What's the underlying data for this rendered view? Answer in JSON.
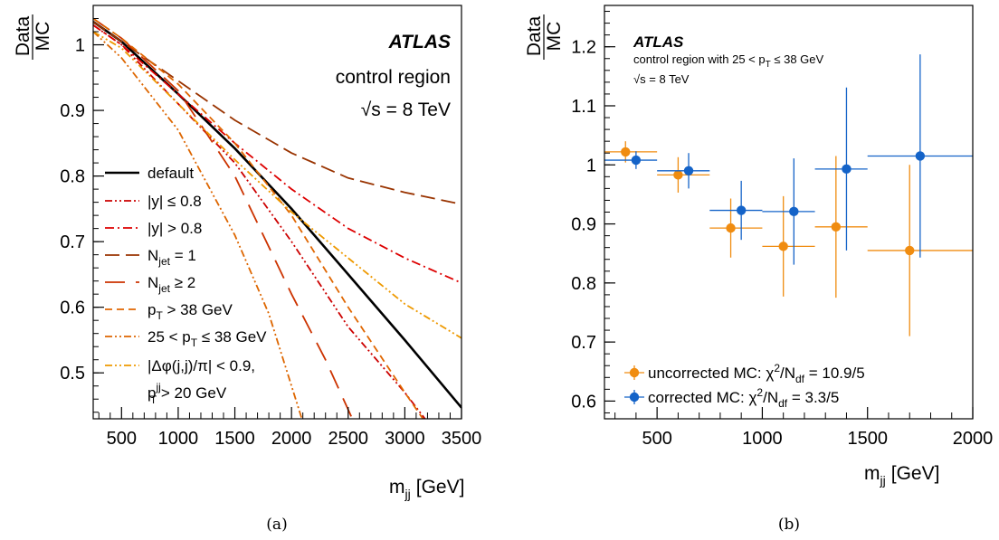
{
  "chart_data": [
    {
      "type": "line",
      "panel_caption": "(a)",
      "ylabel_num": "Data",
      "ylabel_den": "MC",
      "xlabel_main": "m",
      "xlabel_sub": "jj",
      "xlabel_unit": "[GeV]",
      "xlim": [
        250,
        3500
      ],
      "ylim": [
        0.43,
        1.06
      ],
      "xticks": [
        500,
        1000,
        1500,
        2000,
        2500,
        3000,
        3500
      ],
      "yticks": [
        0.5,
        0.6,
        0.7,
        0.8,
        0.9,
        1
      ],
      "annotations": {
        "experiment": "ATLAS",
        "region": "control region",
        "energy_prefix": "√s",
        "energy_value": " = 8 TeV"
      },
      "legend_placement": "bottom-left",
      "series": [
        {
          "name": "default",
          "color": "#000000",
          "dash": "solid",
          "x": [
            250,
            500,
            1000,
            1500,
            2000,
            2500,
            3000,
            3500
          ],
          "y": [
            1.035,
            1.005,
            0.925,
            0.842,
            0.75,
            0.65,
            0.55,
            0.447
          ]
        },
        {
          "name": "|y| ≤ 0.8",
          "color": "#cc0000",
          "dash": "dashdotdot",
          "x": [
            250,
            500,
            1000,
            1500,
            2000,
            2500,
            3000,
            3200
          ],
          "y": [
            1.03,
            1.0,
            0.91,
            0.82,
            0.7,
            0.57,
            0.47,
            0.425
          ]
        },
        {
          "name": "|y| > 0.8",
          "color": "#dd0000",
          "dash": "dashdot",
          "x": [
            250,
            500,
            1000,
            1500,
            2000,
            2500,
            3000,
            3500
          ],
          "y": [
            1.03,
            1.0,
            0.925,
            0.85,
            0.78,
            0.72,
            0.675,
            0.637
          ]
        },
        {
          "name": "N_jet = 1",
          "color": "#993300",
          "dash": "longdash",
          "x": [
            250,
            500,
            1000,
            1500,
            2000,
            2500,
            3000,
            3500
          ],
          "y": [
            1.035,
            1.005,
            0.945,
            0.885,
            0.835,
            0.797,
            0.775,
            0.757
          ]
        },
        {
          "name": "N_jet ≥ 2",
          "color": "#cc3300",
          "dash": "longdashgap",
          "x": [
            250,
            500,
            1000,
            1500,
            2000,
            2300,
            2550
          ],
          "y": [
            1.04,
            1.01,
            0.93,
            0.8,
            0.62,
            0.52,
            0.425
          ]
        },
        {
          "name": "p_T > 38 GeV",
          "color": "#e06600",
          "dash": "dash",
          "x": [
            250,
            500,
            1000,
            1500,
            2000,
            2500,
            3000,
            3200
          ],
          "y": [
            1.04,
            1.01,
            0.94,
            0.85,
            0.74,
            0.6,
            0.47,
            0.42
          ]
        },
        {
          "name": "25 < p_T ≤ 38 GeV",
          "color": "#dd6600",
          "dash": "dashdotdot",
          "x": [
            250,
            500,
            1000,
            1500,
            1800,
            2100
          ],
          "y": [
            1.02,
            0.98,
            0.87,
            0.71,
            0.59,
            0.425
          ]
        },
        {
          "name": "|Δφ(j,j)/π| < 0.9, p_T^jj > 20 GeV",
          "color": "#ee9900",
          "dash": "dashdotdot",
          "x": [
            250,
            500,
            1000,
            1500,
            2000,
            2500,
            3000,
            3500
          ],
          "y": [
            1.02,
            0.995,
            0.91,
            0.825,
            0.745,
            0.675,
            0.605,
            0.553
          ]
        }
      ],
      "legend_rows": [
        {
          "label": "default"
        },
        {
          "label": "|y| ≤ 0.8"
        },
        {
          "label": "|y| > 0.8"
        },
        {
          "label": "N",
          "sub": "jet",
          "tail": " = 1"
        },
        {
          "label": "N",
          "sub": "jet",
          "tail": " ≥ 2"
        },
        {
          "label": "p",
          "sub": "T",
          "tail": " > 38 GeV"
        },
        {
          "label": "25 < p",
          "sub": "T",
          "tail": " ≤ 38 GeV"
        },
        {
          "label": "|Δφ(j,j)/π| < 0.9,"
        },
        {
          "label": "p",
          "sub": "T",
          "sup": "jj",
          "tail": " > 20 GeV"
        }
      ]
    },
    {
      "type": "scatter",
      "panel_caption": "(b)",
      "ylabel_num": "Data",
      "ylabel_den": "MC",
      "xlabel_main": "m",
      "xlabel_sub": "jj",
      "xlabel_unit": "[GeV]",
      "xlim": [
        250,
        2000
      ],
      "ylim": [
        0.57,
        1.27
      ],
      "xticks": [
        500,
        1000,
        1500,
        2000
      ],
      "yticks": [
        0.6,
        0.7,
        0.8,
        0.9,
        1,
        1.1,
        1.2
      ],
      "annotations": {
        "experiment": "ATLAS",
        "region_prefix": "control region with 25 < p",
        "region_sub": "T",
        "region_suffix": " ≤ 38 GeV",
        "energy_prefix": "√s",
        "energy_value": " = 8 TeV"
      },
      "legend_placement": "bottom-left",
      "series": [
        {
          "name": "uncorrected MC",
          "legend_prefix": "uncorrected MC:  χ",
          "legend_chi": "2",
          "legend_ndf": "df",
          "legend_value": " = 10.9/5",
          "color": "#f08c10",
          "x": [
            350,
            600,
            850,
            1100,
            1350,
            1700
          ],
          "x_low": [
            250,
            500,
            750,
            1000,
            1250,
            1500
          ],
          "x_high": [
            500,
            750,
            1000,
            1250,
            1500,
            2000
          ],
          "y": [
            1.022,
            0.983,
            0.893,
            0.862,
            0.895,
            0.855
          ],
          "y_err": [
            0.018,
            0.03,
            0.05,
            0.085,
            0.12,
            0.145
          ]
        },
        {
          "name": "corrected MC",
          "legend_prefix": "corrected MC:  χ",
          "legend_chi": "2",
          "legend_ndf": "df",
          "legend_value": " = 3.3/5",
          "color": "#1463c8",
          "x": [
            400,
            650,
            900,
            1150,
            1400,
            1750
          ],
          "x_low": [
            250,
            500,
            750,
            1000,
            1250,
            1500
          ],
          "x_high": [
            500,
            750,
            1000,
            1250,
            1500,
            2000
          ],
          "y": [
            1.008,
            0.99,
            0.923,
            0.921,
            0.993,
            1.015
          ],
          "y_err": [
            0.015,
            0.03,
            0.05,
            0.09,
            0.138,
            0.172
          ]
        }
      ]
    }
  ]
}
